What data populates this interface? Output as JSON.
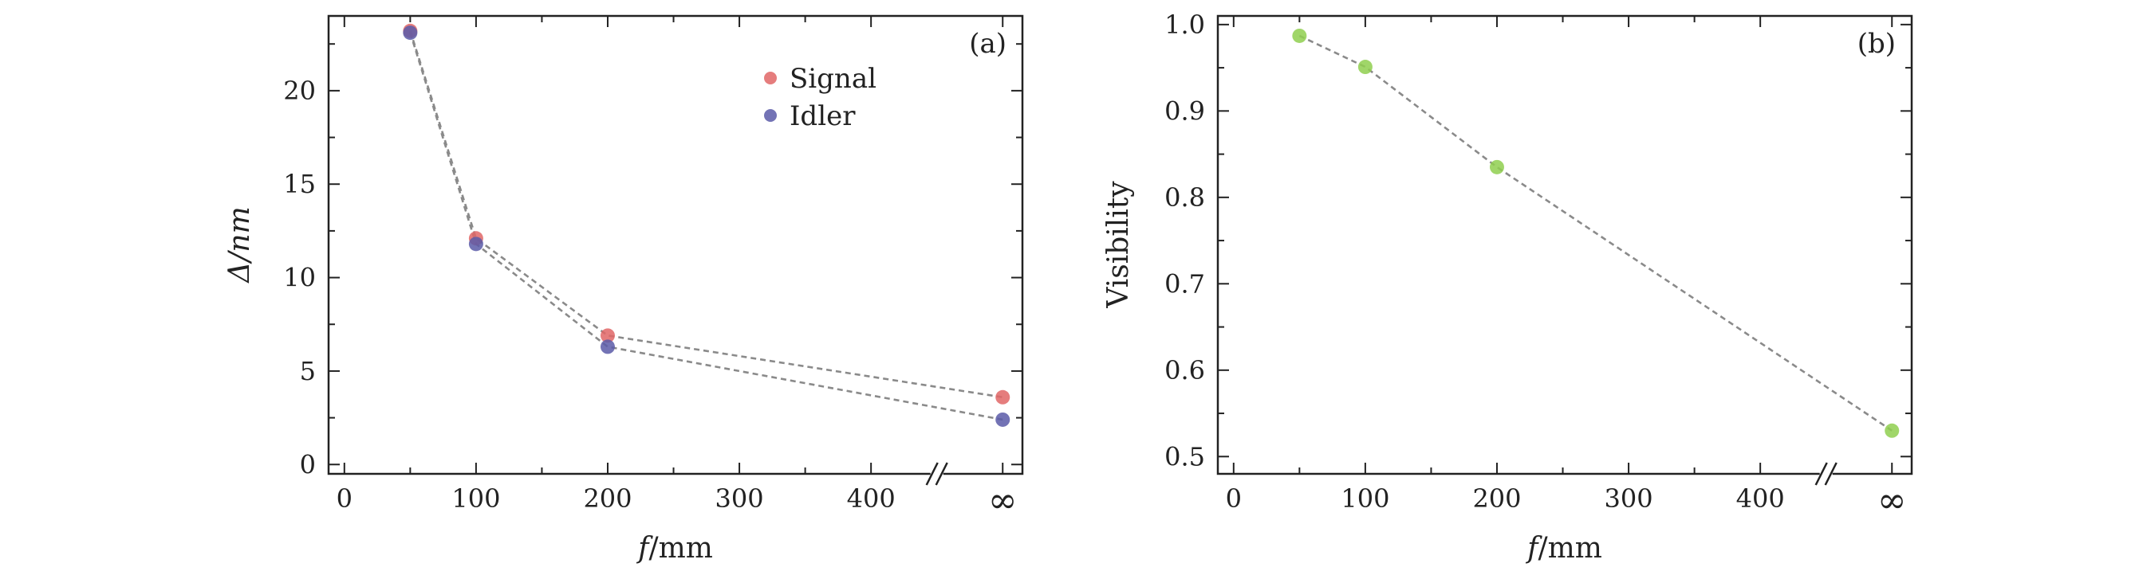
{
  "chart_data": [
    {
      "type": "scatter",
      "panel_label": "(a)",
      "xlabel": "f/mm",
      "ylabel": "Δ/nm",
      "ylim": [
        -0.5,
        24
      ],
      "yticks": [
        "0",
        "5",
        "10",
        "15",
        "20"
      ],
      "xticks": [
        "0",
        "100",
        "200",
        "300",
        "400",
        "∞"
      ],
      "x": [
        "50",
        "100",
        "200",
        "∞"
      ],
      "series": [
        {
          "name": "Signal",
          "color": "#e06666",
          "values": [
            23.2,
            12.1,
            6.9,
            3.6
          ]
        },
        {
          "name": "Idler",
          "color": "#5b5ba8",
          "values": [
            23.1,
            11.8,
            6.3,
            2.4
          ]
        }
      ],
      "legend": "top-right"
    },
    {
      "type": "scatter",
      "panel_label": "(b)",
      "xlabel": "f/mm",
      "ylabel": "Visibility",
      "ylim": [
        0.48,
        1.01
      ],
      "yticks": [
        "0.5",
        "0.6",
        "0.7",
        "0.8",
        "0.9",
        "1.0"
      ],
      "xticks": [
        "0",
        "100",
        "200",
        "300",
        "400",
        "∞"
      ],
      "x": [
        "50",
        "100",
        "200",
        "∞"
      ],
      "series": [
        {
          "name": "Visibility",
          "color": "#8fcf4f",
          "values": [
            0.987,
            0.951,
            0.835,
            0.53
          ]
        }
      ]
    }
  ]
}
